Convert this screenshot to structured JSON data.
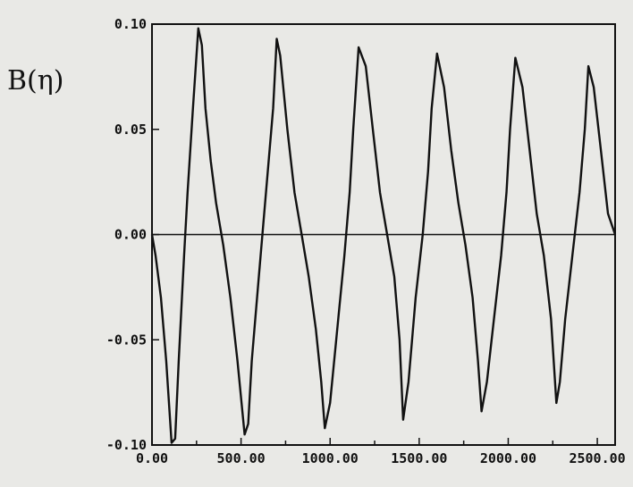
{
  "chart_data": {
    "type": "line",
    "title": "",
    "xlabel": "",
    "ylabel": "B(η)",
    "xlim": [
      0,
      2600
    ],
    "ylim": [
      -0.1,
      0.1
    ],
    "x_ticks": [
      0,
      250,
      500,
      750,
      1000,
      1250,
      1500,
      1750,
      2000,
      2250,
      2500
    ],
    "x_tick_labels": [
      "0.00",
      "500.00",
      "1000.00",
      "1500.00",
      "2000.00",
      "2500.00"
    ],
    "y_tick_labels": [
      "0.10",
      "0.05",
      "0.00",
      "-0.05",
      "-0.10"
    ],
    "y_tick_values": [
      0.1,
      0.05,
      0.0,
      -0.05,
      -0.1
    ],
    "zero_line": true,
    "series": [
      {
        "name": "",
        "x": [
          0,
          20,
          50,
          80,
          110,
          130,
          150,
          180,
          200,
          230,
          260,
          280,
          300,
          330,
          360,
          400,
          440,
          480,
          520,
          540,
          560,
          600,
          640,
          680,
          700,
          720,
          760,
          800,
          840,
          880,
          920,
          950,
          970,
          1000,
          1040,
          1080,
          1110,
          1130,
          1160,
          1200,
          1240,
          1280,
          1320,
          1360,
          1390,
          1410,
          1440,
          1480,
          1520,
          1550,
          1570,
          1600,
          1640,
          1680,
          1720,
          1760,
          1800,
          1830,
          1850,
          1880,
          1920,
          1960,
          1990,
          2010,
          2040,
          2080,
          2120,
          2160,
          2200,
          2240,
          2270,
          2290,
          2320,
          2360,
          2400,
          2430,
          2450,
          2480,
          2520,
          2560,
          2600
        ],
        "y": [
          0.0,
          -0.01,
          -0.03,
          -0.06,
          -0.099,
          -0.097,
          -0.06,
          -0.01,
          0.02,
          0.06,
          0.098,
          0.09,
          0.06,
          0.035,
          0.015,
          -0.005,
          -0.03,
          -0.06,
          -0.095,
          -0.09,
          -0.06,
          -0.02,
          0.02,
          0.06,
          0.093,
          0.085,
          0.05,
          0.02,
          0.0,
          -0.02,
          -0.045,
          -0.07,
          -0.092,
          -0.08,
          -0.045,
          -0.01,
          0.02,
          0.05,
          0.089,
          0.08,
          0.05,
          0.02,
          0.0,
          -0.02,
          -0.05,
          -0.088,
          -0.07,
          -0.03,
          0.0,
          0.03,
          0.06,
          0.086,
          0.07,
          0.04,
          0.015,
          -0.005,
          -0.03,
          -0.06,
          -0.084,
          -0.07,
          -0.04,
          -0.01,
          0.02,
          0.05,
          0.084,
          0.07,
          0.04,
          0.01,
          -0.01,
          -0.04,
          -0.08,
          -0.07,
          -0.04,
          -0.01,
          0.02,
          0.05,
          0.08,
          0.07,
          0.04,
          0.01,
          0.0
        ]
      }
    ],
    "colors": {
      "background": "#e9e9e6",
      "line": "#111111",
      "axes": "#111111"
    }
  }
}
